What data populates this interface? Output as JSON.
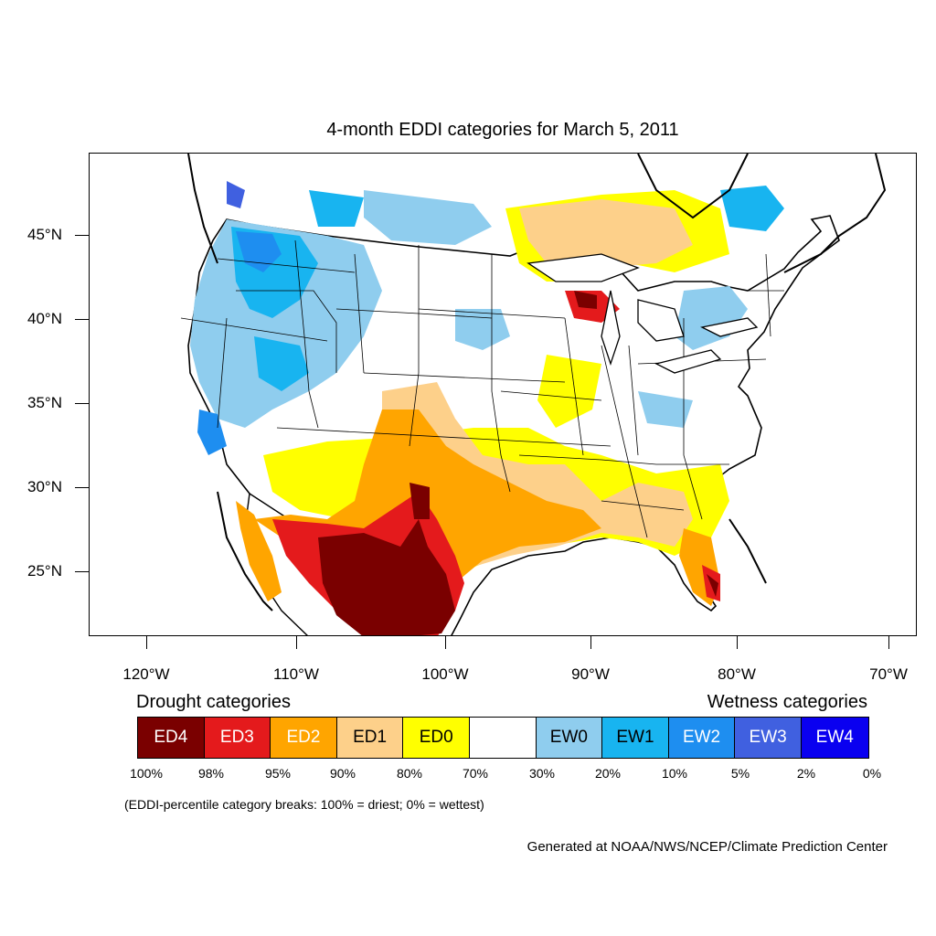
{
  "title": "4-month EDDI categories for March 5, 2011",
  "lat_labels": [
    "45°N",
    "40°N",
    "35°N",
    "30°N",
    "25°N"
  ],
  "lon_labels": [
    "120°W",
    "110°W",
    "100°W",
    "90°W",
    "80°W",
    "70°W"
  ],
  "legend": {
    "drought_title": "Drought categories",
    "wetness_title": "Wetness categories",
    "categories": [
      {
        "label": "ED4",
        "color": "#7a0000",
        "text_color": "#ffffff"
      },
      {
        "label": "ED3",
        "color": "#e41a1c",
        "text_color": "#ffffff"
      },
      {
        "label": "ED2",
        "color": "#ffa500",
        "text_color": "#ffffff"
      },
      {
        "label": "ED1",
        "color": "#fdd08a",
        "text_color": "#000000"
      },
      {
        "label": "ED0",
        "color": "#ffff00",
        "text_color": "#000000"
      },
      {
        "label": "",
        "color": "#ffffff",
        "text_color": "#000000"
      },
      {
        "label": "EW0",
        "color": "#8fcdee",
        "text_color": "#000000"
      },
      {
        "label": "EW1",
        "color": "#18b4f0",
        "text_color": "#000000"
      },
      {
        "label": "EW2",
        "color": "#1e8ef0",
        "text_color": "#ffffff"
      },
      {
        "label": "EW3",
        "color": "#4060e0",
        "text_color": "#ffffff"
      },
      {
        "label": "EW4",
        "color": "#0a00f0",
        "text_color": "#ffffff"
      }
    ],
    "percentiles": [
      "100%",
      "98%",
      "95%",
      "90%",
      "80%",
      "70%",
      "30%",
      "20%",
      "10%",
      "5%",
      "2%",
      "0%"
    ]
  },
  "note": "(EDDI-percentile category breaks: 100% = driest; 0% = wettest)",
  "credit": "Generated at NOAA/NWS/NCEP/Climate Prediction Center"
}
